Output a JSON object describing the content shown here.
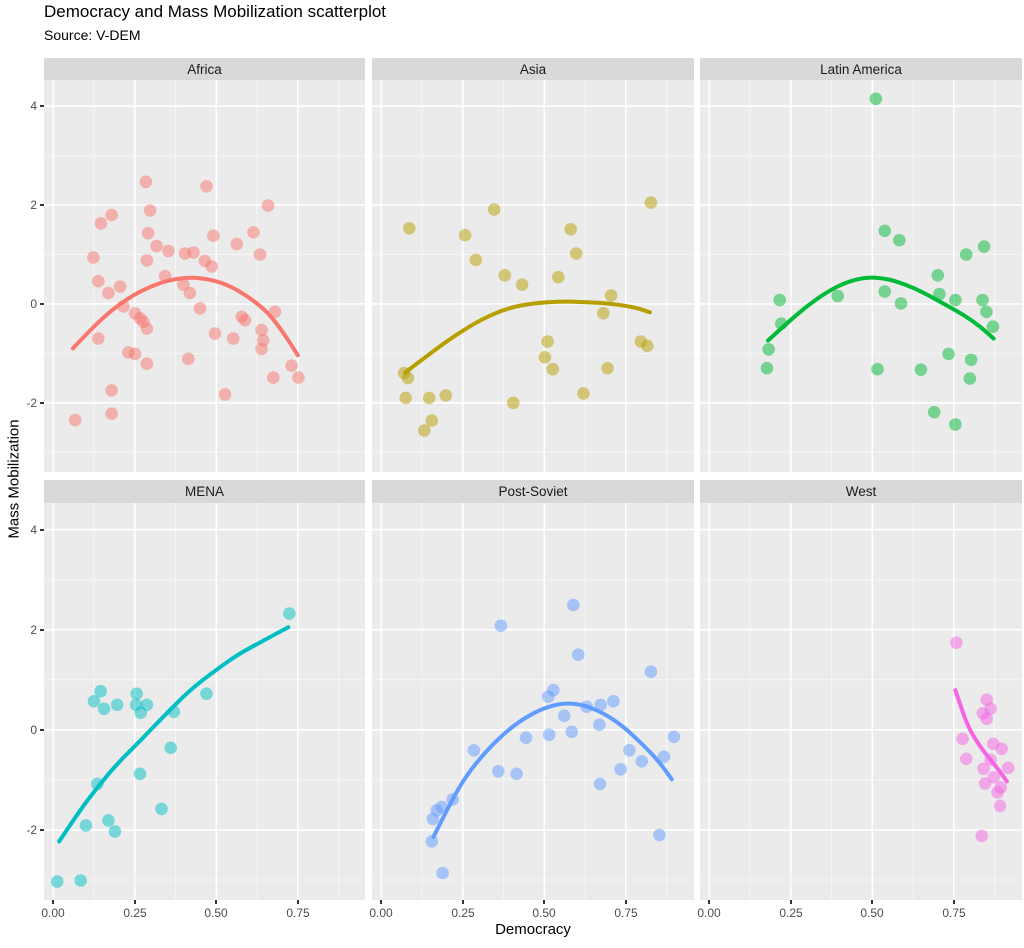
{
  "title": "Democracy and Mass Mobilization scatterplot",
  "subtitle": "Source: V-DEM",
  "axes": {
    "x_title": "Democracy",
    "y_title": "Mass Mobilization",
    "x_tick_labels": [
      "0.00",
      "0.25",
      "0.50",
      "0.75"
    ],
    "x_tick_values": [
      0,
      0.25,
      0.5,
      0.75
    ],
    "y_tick_labels": [
      "4",
      "2",
      "0",
      "-2"
    ],
    "y_tick_values": [
      4,
      2,
      0,
      -2
    ],
    "x_domain": [
      -0.0285,
      0.956
    ],
    "y_domain": [
      -3.4,
      4.53
    ],
    "grid_minor_x": [
      0.125,
      0.375,
      0.625,
      0.875
    ],
    "grid_minor_y": [
      -3,
      -1,
      1,
      3
    ],
    "legend": "none"
  },
  "theme": {
    "panel_bg": "#EBEBEB",
    "strip_bg": "#D9D9D9",
    "grid_major": "#FFFFFF",
    "grid_minor": "#F6F6F6",
    "tick_label_color": "#4D4D4D",
    "tick_mark_color": "#333333",
    "point_opacity": 0.5,
    "point_radius": 6.3,
    "line_width": 4
  },
  "chart_data": [
    {
      "type": "scatter",
      "facet": "Africa",
      "color": "#F8766D",
      "points": [
        [
          0.284,
          2.47
        ],
        [
          0.47,
          2.38
        ],
        [
          0.659,
          1.99
        ],
        [
          0.146,
          1.63
        ],
        [
          0.179,
          1.8
        ],
        [
          0.297,
          1.89
        ],
        [
          0.291,
          1.43
        ],
        [
          0.317,
          1.17
        ],
        [
          0.353,
          1.07
        ],
        [
          0.491,
          1.38
        ],
        [
          0.563,
          1.21
        ],
        [
          0.614,
          1.45
        ],
        [
          0.404,
          1.02
        ],
        [
          0.43,
          1.04
        ],
        [
          0.465,
          0.87
        ],
        [
          0.486,
          0.76
        ],
        [
          0.634,
          1.0
        ],
        [
          0.123,
          0.94
        ],
        [
          0.287,
          0.88
        ],
        [
          0.343,
          0.56
        ],
        [
          0.399,
          0.39
        ],
        [
          0.419,
          0.22
        ],
        [
          0.138,
          0.46
        ],
        [
          0.169,
          0.22
        ],
        [
          0.205,
          0.35
        ],
        [
          0.215,
          -0.05
        ],
        [
          0.251,
          -0.19
        ],
        [
          0.266,
          -0.29
        ],
        [
          0.276,
          -0.36
        ],
        [
          0.287,
          -0.5
        ],
        [
          0.45,
          -0.09
        ],
        [
          0.578,
          -0.26
        ],
        [
          0.588,
          -0.33
        ],
        [
          0.496,
          -0.6
        ],
        [
          0.552,
          -0.7
        ],
        [
          0.138,
          -0.7
        ],
        [
          0.23,
          -0.98
        ],
        [
          0.251,
          -1.01
        ],
        [
          0.287,
          -1.21
        ],
        [
          0.414,
          -1.11
        ],
        [
          0.639,
          -0.53
        ],
        [
          0.644,
          -0.74
        ],
        [
          0.639,
          -0.91
        ],
        [
          0.68,
          -0.16
        ],
        [
          0.731,
          -1.25
        ],
        [
          0.752,
          -1.49
        ],
        [
          0.675,
          -1.49
        ],
        [
          0.179,
          -1.75
        ],
        [
          0.527,
          -1.83
        ],
        [
          0.179,
          -2.22
        ],
        [
          0.067,
          -2.35
        ]
      ],
      "trend": [
        [
          0.06,
          -0.9
        ],
        [
          0.12,
          -0.48
        ],
        [
          0.18,
          -0.12
        ],
        [
          0.24,
          0.16
        ],
        [
          0.3,
          0.36
        ],
        [
          0.36,
          0.49
        ],
        [
          0.42,
          0.54
        ],
        [
          0.48,
          0.5
        ],
        [
          0.54,
          0.37
        ],
        [
          0.6,
          0.14
        ],
        [
          0.66,
          -0.18
        ],
        [
          0.71,
          -0.62
        ],
        [
          0.75,
          -1.04
        ]
      ]
    },
    {
      "type": "scatter",
      "facet": "Asia",
      "color": "#B79F00",
      "points": [
        [
          0.086,
          1.53
        ],
        [
          0.346,
          1.91
        ],
        [
          0.257,
          1.39
        ],
        [
          0.29,
          0.89
        ],
        [
          0.379,
          0.58
        ],
        [
          0.432,
          0.39
        ],
        [
          0.543,
          0.54
        ],
        [
          0.581,
          1.51
        ],
        [
          0.598,
          1.02
        ],
        [
          0.705,
          0.17
        ],
        [
          0.681,
          -0.19
        ],
        [
          0.827,
          2.05
        ],
        [
          0.796,
          -0.76
        ],
        [
          0.816,
          -0.85
        ],
        [
          0.51,
          -0.76
        ],
        [
          0.502,
          -1.08
        ],
        [
          0.526,
          -1.32
        ],
        [
          0.694,
          -1.3
        ],
        [
          0.62,
          -1.81
        ],
        [
          0.07,
          -1.4
        ],
        [
          0.082,
          -1.5
        ],
        [
          0.075,
          -1.9
        ],
        [
          0.147,
          -1.9
        ],
        [
          0.198,
          -1.85
        ],
        [
          0.405,
          -2.0
        ],
        [
          0.155,
          -2.36
        ],
        [
          0.132,
          -2.56
        ]
      ],
      "trend": [
        [
          0.073,
          -1.39
        ],
        [
          0.15,
          -1.0
        ],
        [
          0.23,
          -0.62
        ],
        [
          0.31,
          -0.3
        ],
        [
          0.39,
          -0.08
        ],
        [
          0.47,
          0.02
        ],
        [
          0.55,
          0.05
        ],
        [
          0.63,
          0.04
        ],
        [
          0.71,
          0.0
        ],
        [
          0.78,
          -0.07
        ],
        [
          0.824,
          -0.17
        ]
      ]
    },
    {
      "type": "scatter",
      "facet": "Latin America",
      "color": "#00BA38",
      "points": [
        [
          0.511,
          4.15
        ],
        [
          0.538,
          1.48
        ],
        [
          0.583,
          1.29
        ],
        [
          0.843,
          1.16
        ],
        [
          0.788,
          1.0
        ],
        [
          0.701,
          0.58
        ],
        [
          0.538,
          0.25
        ],
        [
          0.588,
          0.01
        ],
        [
          0.706,
          0.2
        ],
        [
          0.755,
          0.08
        ],
        [
          0.838,
          0.08
        ],
        [
          0.85,
          -0.16
        ],
        [
          0.87,
          -0.46
        ],
        [
          0.394,
          0.16
        ],
        [
          0.216,
          0.08
        ],
        [
          0.221,
          -0.4
        ],
        [
          0.182,
          -0.92
        ],
        [
          0.177,
          -1.3
        ],
        [
          0.734,
          -1.01
        ],
        [
          0.803,
          -1.13
        ],
        [
          0.516,
          -1.32
        ],
        [
          0.649,
          -1.33
        ],
        [
          0.799,
          -1.51
        ],
        [
          0.69,
          -2.19
        ],
        [
          0.755,
          -2.44
        ]
      ],
      "trend": [
        [
          0.18,
          -0.74
        ],
        [
          0.24,
          -0.38
        ],
        [
          0.3,
          -0.04
        ],
        [
          0.36,
          0.24
        ],
        [
          0.42,
          0.44
        ],
        [
          0.48,
          0.54
        ],
        [
          0.54,
          0.52
        ],
        [
          0.6,
          0.4
        ],
        [
          0.66,
          0.22
        ],
        [
          0.72,
          0.0
        ],
        [
          0.78,
          -0.22
        ],
        [
          0.83,
          -0.45
        ],
        [
          0.872,
          -0.7
        ]
      ]
    },
    {
      "type": "scatter",
      "facet": "MENA",
      "color": "#00BFC4",
      "points": [
        [
          0.724,
          2.32
        ],
        [
          0.145,
          0.77
        ],
        [
          0.125,
          0.57
        ],
        [
          0.156,
          0.42
        ],
        [
          0.196,
          0.5
        ],
        [
          0.256,
          0.72
        ],
        [
          0.254,
          0.5
        ],
        [
          0.268,
          0.34
        ],
        [
          0.287,
          0.5
        ],
        [
          0.37,
          0.36
        ],
        [
          0.47,
          0.72
        ],
        [
          0.36,
          -0.36
        ],
        [
          0.266,
          -0.88
        ],
        [
          0.135,
          -1.08
        ],
        [
          0.332,
          -1.58
        ],
        [
          0.169,
          -1.81
        ],
        [
          0.1,
          -1.91
        ],
        [
          0.189,
          -2.03
        ],
        [
          0.012,
          -3.03
        ],
        [
          0.084,
          -3.01
        ]
      ],
      "trend": [
        [
          0.018,
          -2.23
        ],
        [
          0.08,
          -1.62
        ],
        [
          0.14,
          -1.11
        ],
        [
          0.2,
          -0.65
        ],
        [
          0.27,
          -0.2
        ],
        [
          0.34,
          0.28
        ],
        [
          0.42,
          0.8
        ],
        [
          0.5,
          1.2
        ],
        [
          0.57,
          1.52
        ],
        [
          0.65,
          1.8
        ],
        [
          0.721,
          2.05
        ]
      ]
    },
    {
      "type": "scatter",
      "facet": "Post-Soviet",
      "color": "#619CFF",
      "points": [
        [
          0.589,
          2.49
        ],
        [
          0.367,
          2.08
        ],
        [
          0.604,
          1.5
        ],
        [
          0.827,
          1.16
        ],
        [
          0.528,
          0.79
        ],
        [
          0.512,
          0.66
        ],
        [
          0.561,
          0.28
        ],
        [
          0.584,
          -0.04
        ],
        [
          0.63,
          0.46
        ],
        [
          0.673,
          0.5
        ],
        [
          0.712,
          0.57
        ],
        [
          0.669,
          0.1
        ],
        [
          0.515,
          -0.1
        ],
        [
          0.444,
          -0.16
        ],
        [
          0.898,
          -0.14
        ],
        [
          0.761,
          -0.41
        ],
        [
          0.799,
          -0.63
        ],
        [
          0.867,
          -0.54
        ],
        [
          0.734,
          -0.79
        ],
        [
          0.284,
          -0.41
        ],
        [
          0.359,
          -0.83
        ],
        [
          0.415,
          -0.88
        ],
        [
          0.671,
          -1.08
        ],
        [
          0.219,
          -1.39
        ],
        [
          0.185,
          -1.54
        ],
        [
          0.17,
          -1.61
        ],
        [
          0.158,
          -1.78
        ],
        [
          0.155,
          -2.23
        ],
        [
          0.853,
          -2.1
        ],
        [
          0.188,
          -2.86
        ]
      ],
      "trend": [
        [
          0.16,
          -2.14
        ],
        [
          0.21,
          -1.48
        ],
        [
          0.26,
          -0.92
        ],
        [
          0.32,
          -0.44
        ],
        [
          0.38,
          -0.05
        ],
        [
          0.44,
          0.24
        ],
        [
          0.5,
          0.44
        ],
        [
          0.56,
          0.54
        ],
        [
          0.62,
          0.5
        ],
        [
          0.68,
          0.34
        ],
        [
          0.74,
          0.08
        ],
        [
          0.8,
          -0.28
        ],
        [
          0.85,
          -0.62
        ],
        [
          0.891,
          -0.99
        ]
      ]
    },
    {
      "type": "scatter",
      "facet": "West",
      "color": "#F564E3",
      "points": [
        [
          0.758,
          1.74
        ],
        [
          0.851,
          0.6
        ],
        [
          0.863,
          0.42
        ],
        [
          0.839,
          0.33
        ],
        [
          0.851,
          0.22
        ],
        [
          0.777,
          -0.18
        ],
        [
          0.871,
          -0.28
        ],
        [
          0.897,
          -0.38
        ],
        [
          0.788,
          -0.58
        ],
        [
          0.863,
          -0.6
        ],
        [
          0.841,
          -0.78
        ],
        [
          0.917,
          -0.76
        ],
        [
          0.873,
          -0.95
        ],
        [
          0.894,
          -1.15
        ],
        [
          0.884,
          -1.25
        ],
        [
          0.846,
          -1.07
        ],
        [
          0.892,
          -1.52
        ],
        [
          0.836,
          -2.12
        ]
      ],
      "trend": [
        [
          0.755,
          0.79
        ],
        [
          0.78,
          0.3
        ],
        [
          0.8,
          -0.02
        ],
        [
          0.83,
          -0.33
        ],
        [
          0.86,
          -0.58
        ],
        [
          0.89,
          -0.82
        ],
        [
          0.913,
          -1.03
        ]
      ]
    }
  ]
}
